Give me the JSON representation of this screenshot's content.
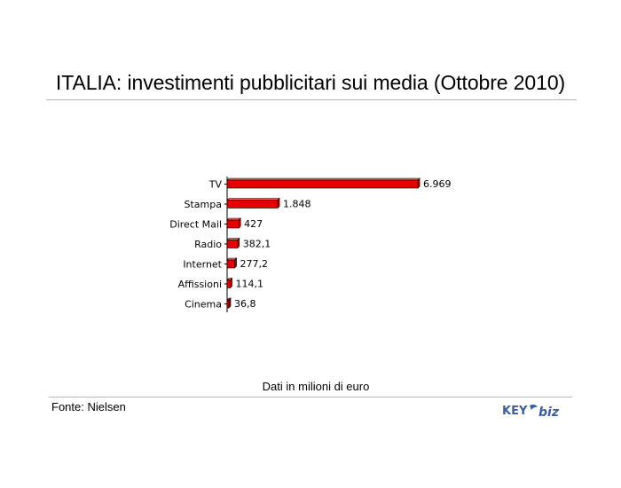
{
  "header": {
    "title": "ITALIA: investimenti pubblicitari sui media (Ottobre 2010)"
  },
  "chart_data": {
    "type": "bar",
    "orientation": "horizontal",
    "style": "3d",
    "bar_color": "#e60000",
    "categories": [
      "TV",
      "Stampa",
      "Direct Mail",
      "Radio",
      "Internet",
      "Affissioni",
      "Cinema"
    ],
    "values": [
      6969,
      1848,
      427,
      382.1,
      277.2,
      114.1,
      36.8
    ],
    "data_labels": [
      "6.969",
      "1.848",
      "427",
      "382,1",
      "277,2",
      "114,1",
      "36,8"
    ],
    "xlim": [
      0,
      7000
    ],
    "grid": false,
    "legend": "none"
  },
  "notes": {
    "units": "Dati in milioni di euro",
    "source": "Fonte: Nielsen"
  },
  "logo": {
    "part1": "KEY",
    "part2": "biz",
    "color": "#3d5fa0"
  }
}
